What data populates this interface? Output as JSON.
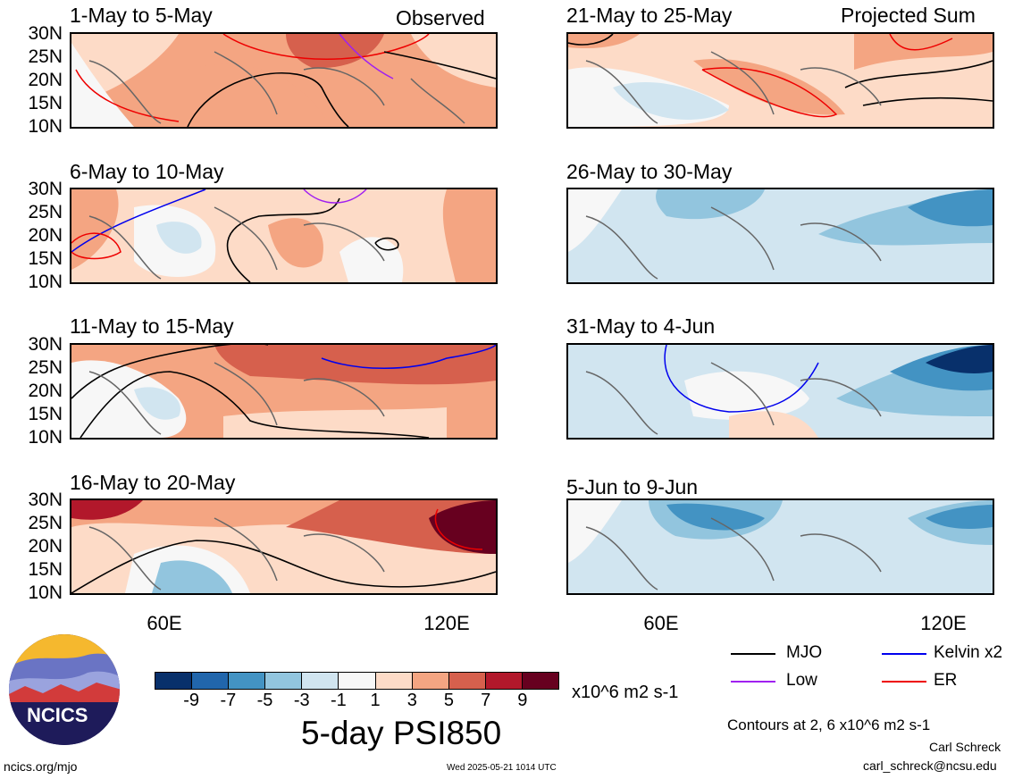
{
  "header": {
    "left_tag": "Observed",
    "right_tag": "Projected Sum"
  },
  "panels_left": [
    {
      "title": "1-May to 5-May"
    },
    {
      "title": "6-May to 10-May"
    },
    {
      "title": "11-May to 15-May"
    },
    {
      "title": "16-May to 20-May"
    }
  ],
  "panels_right": [
    {
      "title": "21-May to 25-May"
    },
    {
      "title": "26-May to 30-May"
    },
    {
      "title": "31-May to 4-Jun"
    },
    {
      "title": "5-Jun to 9-Jun"
    }
  ],
  "lat_labels": [
    "30N",
    "25N",
    "20N",
    "15N",
    "10N"
  ],
  "lon_labels": [
    "60E",
    "120E"
  ],
  "legend": {
    "mjo": "MJO",
    "kelvin": "Kelvin x2",
    "low": "Low",
    "er": "ER",
    "colors": {
      "mjo": "#000000",
      "kelvin": "#0000ee",
      "low": "#a020f0",
      "er": "#ee0000"
    }
  },
  "colorbar": {
    "labels": [
      "-9",
      "-7",
      "-5",
      "-3",
      "-1",
      "1",
      "3",
      "5",
      "7",
      "9"
    ],
    "units": "x10^6 m2 s-1",
    "colors": [
      "#08306b",
      "#2166ac",
      "#4393c3",
      "#92c5de",
      "#d1e5f0",
      "#f7f7f7",
      "#fddbc7",
      "#f4a582",
      "#d6604d",
      "#b2182b",
      "#67001f"
    ]
  },
  "title": "5-day PSI850",
  "contours_note": "Contours at 2, 6 x10^6 m2 s-1",
  "author": "Carl Schreck",
  "email": "carl_schreck@ncsu.edu",
  "logo_text": "NCICS",
  "site": "ncics.org/mjo",
  "timestamp": "Wed 2025-05-21 1014 UTC"
}
